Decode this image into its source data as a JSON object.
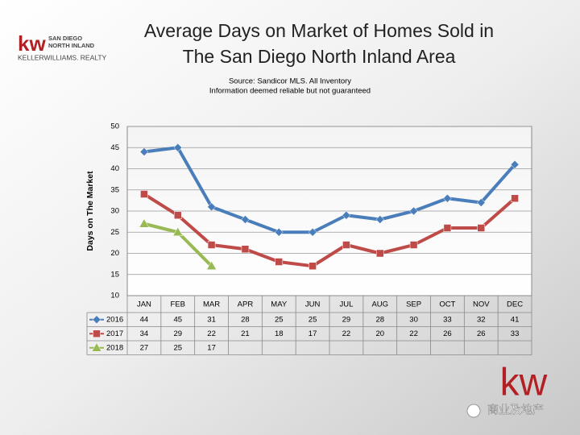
{
  "logo": {
    "mark": "kw",
    "line1": "SAN DIEGO",
    "line2": "NORTH INLAND",
    "line3": "KELLERWILLIAMS. REALTY"
  },
  "chart_data": {
    "type": "line",
    "title": [
      "Average Days on Market of Homes Sold in",
      "The San Diego North Inland Area"
    ],
    "subtitle": [
      "Source: Sandicor MLS. All Inventory",
      "Information deemed reliable but not guaranteed"
    ],
    "y_label": "Days on The Market",
    "categories": [
      "JAN",
      "FEB",
      "MAR",
      "APR",
      "MAY",
      "JUN",
      "JUL",
      "AUG",
      "SEP",
      "OCT",
      "NOV",
      "DEC"
    ],
    "series": [
      {
        "name": "2016",
        "color": "#4a7ebb",
        "marker": "diamond",
        "values": [
          44,
          45,
          31,
          28,
          25,
          25,
          29,
          28,
          30,
          33,
          32,
          41
        ]
      },
      {
        "name": "2017",
        "color": "#be4b48",
        "marker": "square",
        "values": [
          34,
          29,
          22,
          21,
          18,
          17,
          22,
          20,
          22,
          26,
          26,
          33
        ]
      },
      {
        "name": "2018",
        "color": "#98b954",
        "marker": "triangle",
        "values": [
          27,
          25,
          17,
          null,
          null,
          null,
          null,
          null,
          null,
          null,
          null,
          null
        ]
      }
    ],
    "ylim": [
      10,
      50
    ],
    "yticks": [
      10,
      15,
      20,
      25,
      30,
      35,
      40,
      45,
      50
    ],
    "grid": true,
    "data_table": true
  },
  "footer": {
    "mark": "kw",
    "watermark": "商业及地产"
  }
}
